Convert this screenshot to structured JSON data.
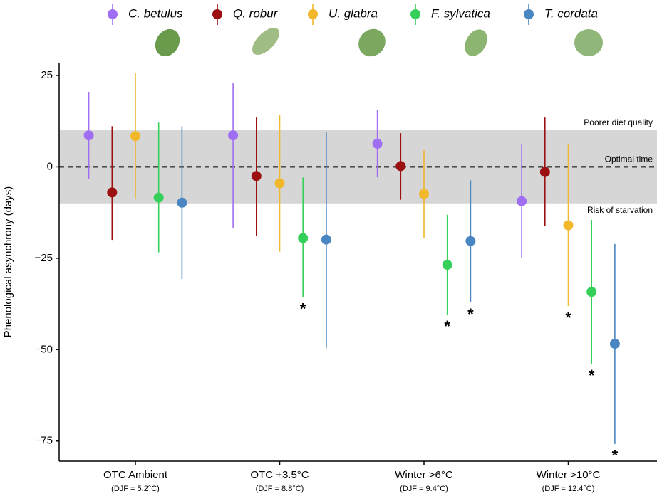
{
  "chart_data": {
    "type": "pointrange",
    "y_label": "Phenological asynchrony (days)",
    "categories": [
      "OTC Ambient",
      "OTC +3.5°C",
      "Winter >6°C",
      "Winter >10°C"
    ],
    "category_notes": [
      "(DJF = 5.2°C)",
      "(DJF = 8.8°C)",
      "(DJF = 9.4°C)",
      "(DJF = 12.4°C)"
    ],
    "ylim": [
      -80.5,
      28.5
    ],
    "yticks": [
      25,
      0,
      {
        "value": -25,
        "label": "−25"
      },
      {
        "value": -50,
        "label": "−50"
      },
      {
        "value": -75,
        "label": "−75"
      }
    ],
    "band": [
      -10,
      10
    ],
    "hline": 0,
    "annotations": [
      "Poorer diet quality",
      "Optimal time",
      "Risk of starvation"
    ],
    "series": [
      {
        "name": "C. betulus",
        "color": "#a06ef2",
        "values": [
          8.6,
          8.6,
          6.3,
          -9.4
        ],
        "low": [
          -3.3,
          -16.8,
          -2.9,
          -24.8
        ],
        "high": [
          20.5,
          22.9,
          15.6,
          6.3
        ],
        "markers": [
          null,
          null,
          null,
          null
        ]
      },
      {
        "name": "Q. robur",
        "color": "#9b1010",
        "values": [
          -7.0,
          -2.5,
          0.2,
          -1.4
        ],
        "low": [
          -20,
          -18.8,
          -9,
          -16.2
        ],
        "high": [
          11.1,
          13.5,
          9.2,
          13.5
        ],
        "markers": [
          null,
          null,
          null,
          null
        ]
      },
      {
        "name": "U. glabra",
        "color": "#f0b82a",
        "values": [
          8.4,
          -4.5,
          -7.4,
          -16
        ],
        "low": [
          -8.8,
          -23.2,
          -19.5,
          -38.1
        ],
        "high": [
          25.6,
          14.1,
          4.5,
          6.1
        ],
        "markers": [
          null,
          null,
          null,
          "*"
        ]
      },
      {
        "name": "F. sylvatica",
        "color": "#35d05a",
        "values": [
          -8.4,
          -19.5,
          -26.8,
          -34.2
        ],
        "low": [
          -23.4,
          -35.7,
          -40.4,
          -53.9
        ],
        "high": [
          12.1,
          -2.9,
          -13.1,
          -14.5
        ],
        "markers": [
          null,
          "*",
          "*",
          "*"
        ]
      },
      {
        "name": "T. cordata",
        "color": "#4a87c2",
        "values": [
          -9.8,
          -19.9,
          -20.3,
          -48.4
        ],
        "low": [
          -30.7,
          -49.6,
          -37.1,
          -75.8
        ],
        "high": [
          11.1,
          9.6,
          -3.7,
          -21.1
        ],
        "markers": [
          null,
          null,
          "*",
          "*"
        ]
      }
    ]
  }
}
